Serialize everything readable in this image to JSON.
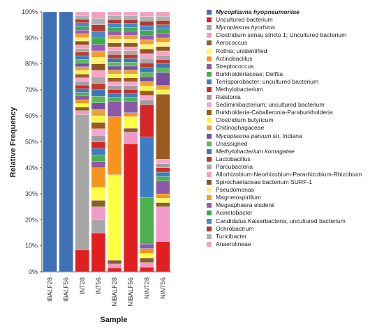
{
  "chart_data": {
    "type": "bar",
    "stacked": true,
    "xlabel": "Sample",
    "ylabel": "Relative Frequency",
    "ylim": [
      0,
      100
    ],
    "yticks": [
      "0%",
      "10%",
      "20%",
      "30%",
      "40%",
      "50%",
      "60%",
      "70%",
      "80%",
      "90%",
      "100%"
    ],
    "categories": [
      "IBALF28",
      "IBALF56",
      "INT28",
      "INT56",
      "NIBALF28",
      "NIBALF56",
      "NINT28",
      "NINT56"
    ],
    "legend_position": "right",
    "series": [
      {
        "name": "Mycoplasma hyopneumoniae",
        "style": "bold-italic",
        "color": "#3F6FB5",
        "values": [
          99,
          99,
          0,
          0,
          0,
          0,
          0,
          0
        ]
      },
      {
        "name": "Uncultured bacterium",
        "style": "normal",
        "color": "#E02020",
        "values": [
          0,
          0,
          6,
          6,
          1,
          33,
          1,
          7
        ]
      },
      {
        "name": "Mycoplasma hyorhinis",
        "style": "italic",
        "color": "#A6A6A6",
        "values": [
          0,
          0,
          37,
          2,
          0,
          0,
          0,
          0
        ]
      },
      {
        "name": "Clostridium sensu stricto 1; Uncultured bacterium",
        "style": "normal",
        "color": "#F09AC8",
        "values": [
          0,
          0,
          1,
          2,
          1,
          3,
          1,
          8
        ]
      },
      {
        "name": "Aerococcus",
        "style": "normal",
        "color": "#8C5E2A",
        "values": [
          0,
          0,
          1,
          1,
          1,
          1,
          1,
          1
        ]
      },
      {
        "name": "Rothia; unidentified",
        "style": "normal",
        "color": "#FFFF44",
        "values": [
          0,
          0,
          1,
          2,
          22,
          3,
          1,
          1
        ]
      },
      {
        "name": "Actinobacillus",
        "style": "normal",
        "color": "#F7941D",
        "values": [
          0,
          0,
          1,
          3,
          15,
          1,
          1,
          1
        ]
      },
      {
        "name": "Streptococcus",
        "style": "normal",
        "color": "#8B59A5",
        "values": [
          0,
          0,
          1,
          1,
          4,
          3,
          1,
          3
        ]
      },
      {
        "name": "Burkholderiaceae; Delftia",
        "style": "normal",
        "color": "#4CAF50",
        "values": [
          0,
          0,
          1,
          1,
          1,
          1,
          10,
          1
        ]
      },
      {
        "name": "Terrisporobacter; uncultured bacterium",
        "style": "normal",
        "color": "#3E7DC2",
        "values": [
          0,
          0,
          1,
          1,
          1,
          1,
          13,
          1
        ]
      },
      {
        "name": "Methylobacterium",
        "style": "normal",
        "color": "#D62728",
        "values": [
          0,
          0,
          1,
          1,
          1,
          1,
          7,
          1
        ]
      },
      {
        "name": "Ralstonia",
        "style": "normal",
        "color": "#9E9E9E",
        "values": [
          0,
          0,
          1,
          1,
          1,
          1,
          1,
          1
        ]
      },
      {
        "name": "Sediminibacterium; uncultured bacterium",
        "style": "normal",
        "color": "#F4A6CF",
        "values": [
          0,
          0,
          1,
          1,
          1,
          1,
          1,
          1
        ]
      },
      {
        "name": "Burkholderia-Caballeronia-Paraburkholderia",
        "style": "normal",
        "color": "#9C5A1E",
        "values": [
          0,
          0,
          1,
          1,
          1,
          1,
          1,
          15
        ]
      },
      {
        "name": "Clostridium butyricum",
        "style": "normal",
        "color": "#F5F542",
        "values": [
          0,
          0,
          1,
          1,
          1,
          1,
          1,
          1
        ]
      },
      {
        "name": "Chitinophagaceae",
        "style": "normal",
        "color": "#E8A33D",
        "values": [
          0,
          0,
          1,
          1,
          1,
          1,
          1,
          1
        ]
      },
      {
        "name": "Mycoplasma parvum str. Indiana",
        "style": "italic-prefix",
        "italic_part": "Mycoplasma parvum",
        "rest_part": " str. Indiana",
        "color": "#7B4FA0",
        "values": [
          0,
          0,
          1,
          1,
          1,
          1,
          1,
          3
        ]
      },
      {
        "name": "Unassigned",
        "style": "normal",
        "color": "#5CB85C",
        "values": [
          0,
          0,
          1,
          1,
          1,
          1,
          1,
          1
        ]
      },
      {
        "name": "Methylobacterium komagatae",
        "style": "italic",
        "color": "#3A78B5",
        "values": [
          0,
          0,
          1,
          1,
          1,
          1,
          1,
          1
        ]
      },
      {
        "name": "Lactobacillus",
        "style": "normal",
        "color": "#C0392B",
        "values": [
          0,
          0,
          1,
          1,
          1,
          1,
          1,
          1
        ]
      },
      {
        "name": "Parcubacteria",
        "style": "normal",
        "color": "#A8A8A8",
        "values": [
          0,
          0,
          1,
          1,
          1,
          1,
          1,
          1
        ]
      },
      {
        "name": "Allorhizobium-Neorhizobium-Pararhizobium-Rhizobium",
        "style": "normal",
        "color": "#F7A1C4",
        "values": [
          0,
          0,
          1,
          1,
          1,
          1,
          1,
          1
        ]
      },
      {
        "name": "Spirochaetaceae bacterium SURF-1",
        "style": "normal",
        "color": "#8D5524",
        "values": [
          0,
          0,
          1,
          1,
          1,
          1,
          1,
          1
        ]
      },
      {
        "name": "Pseudomonas",
        "style": "normal",
        "color": "#FFF176",
        "values": [
          0,
          0,
          1,
          1,
          1,
          1,
          1,
          1
        ]
      },
      {
        "name": "Magnetospirillum",
        "style": "normal",
        "color": "#F0A030",
        "values": [
          0,
          0,
          1,
          1,
          1,
          1,
          1,
          1
        ]
      },
      {
        "name": "Megasphaera elsdenii",
        "style": "normal",
        "color": "#9B59B6",
        "values": [
          0,
          0,
          1,
          1,
          1,
          1,
          1,
          1
        ]
      },
      {
        "name": "Acinetobacter",
        "style": "normal",
        "color": "#3CAB4B",
        "values": [
          0,
          0,
          1,
          1,
          1,
          1,
          1,
          1
        ]
      },
      {
        "name": "Candidatus Kaiserbacteria; uncultured bacterium",
        "style": "normal",
        "color": "#4A86C8",
        "values": [
          0,
          0,
          1,
          1,
          1,
          1,
          1,
          1
        ]
      },
      {
        "name": "Ochrobactrum",
        "style": "normal",
        "color": "#B03A2E",
        "values": [
          0,
          0,
          1,
          1,
          1,
          1,
          1,
          1
        ]
      },
      {
        "name": "Turicibacter",
        "style": "normal",
        "color": "#B0B0B0",
        "values": [
          0,
          0,
          1,
          1,
          1,
          1,
          1,
          1
        ]
      },
      {
        "name": "Anaerolineae",
        "style": "normal",
        "color": "#F4A0C0",
        "values": [
          0,
          0,
          1,
          1,
          1,
          1,
          1,
          1
        ]
      }
    ]
  }
}
